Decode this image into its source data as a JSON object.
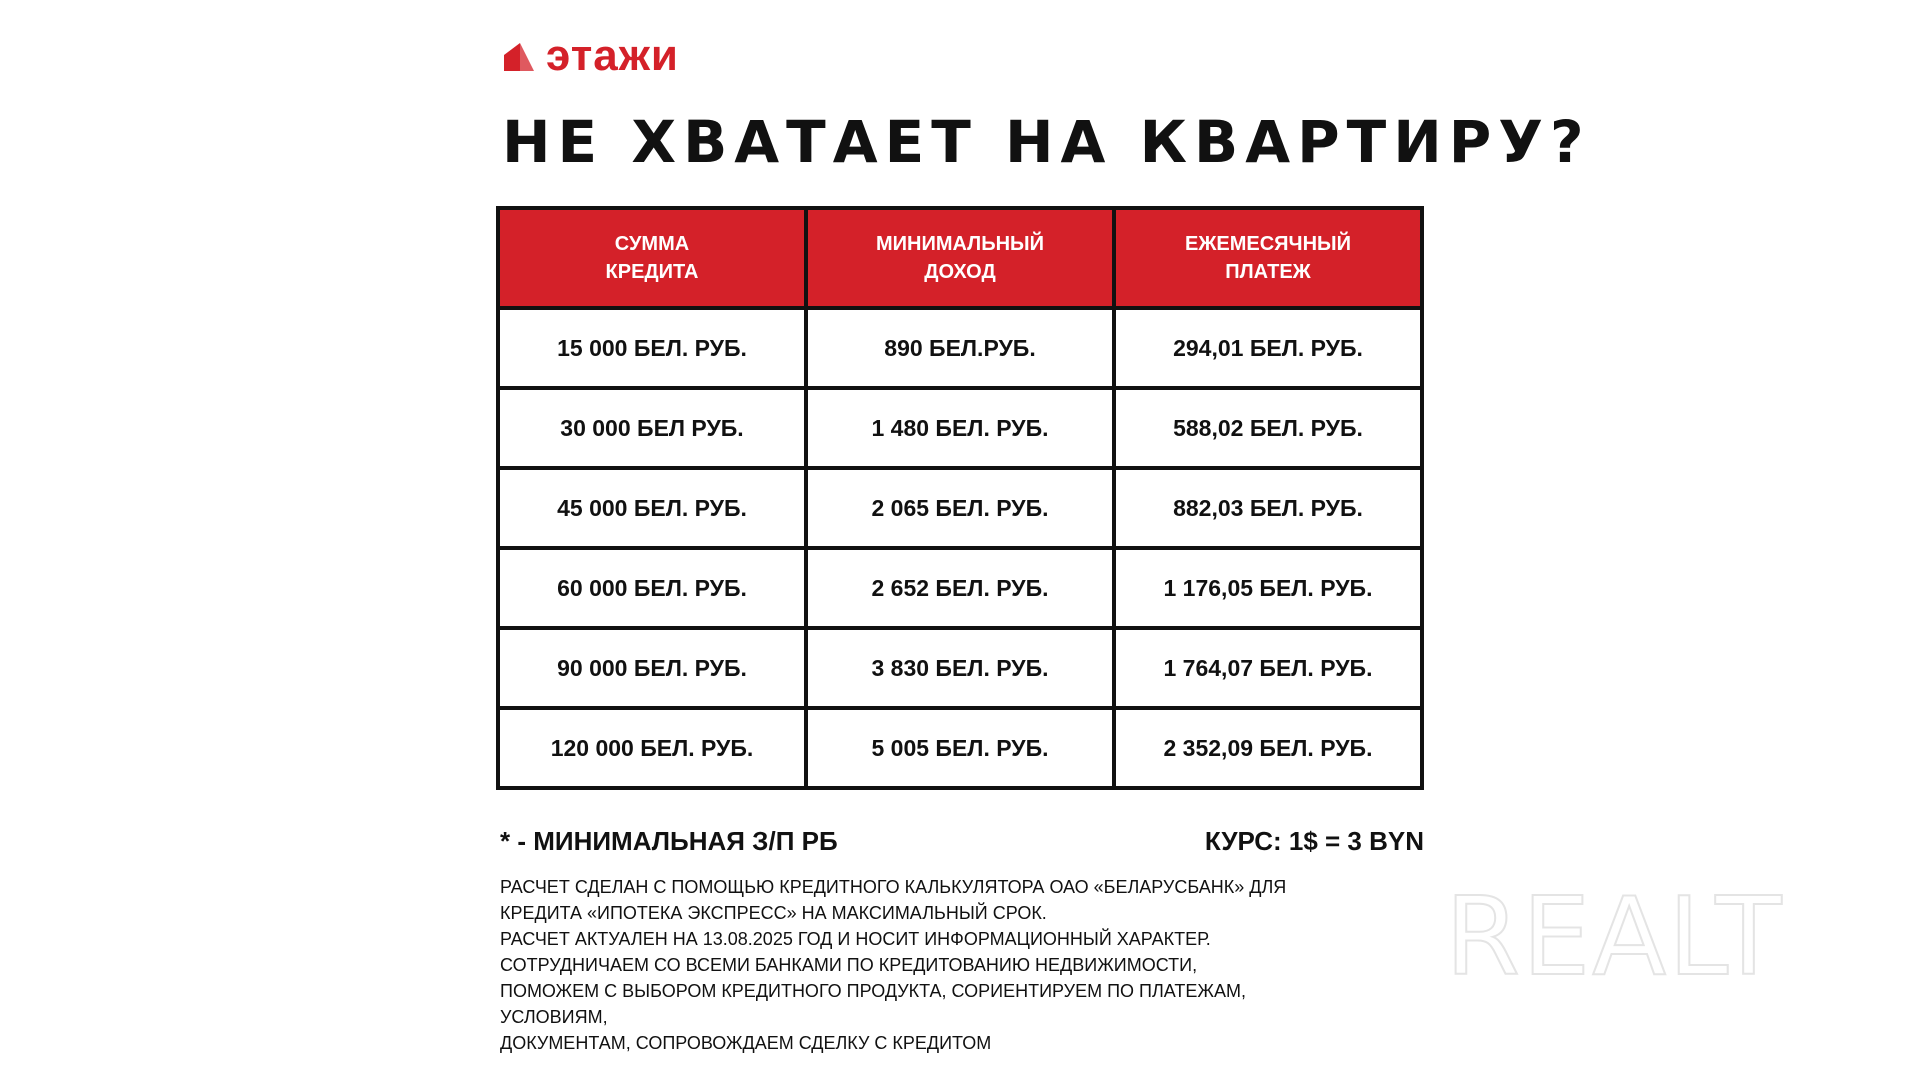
{
  "logo": {
    "text": "этажи",
    "color": "#d42129"
  },
  "title": "НЕ ХВАТАЕТ НА КВАРТИРУ?",
  "table": {
    "headers": [
      [
        "СУММА",
        "КРЕДИТА"
      ],
      [
        "МИНИМАЛЬНЫЙ",
        "ДОХОД"
      ],
      [
        "ЕЖЕМЕСЯЧНЫЙ",
        "ПЛАТЕЖ"
      ]
    ],
    "rows": [
      [
        "15 000 БЕЛ. РУБ.",
        "890 БЕЛ.РУБ.",
        "294,01 БЕЛ. РУБ."
      ],
      [
        "30 000 БЕЛ РУБ.",
        "1 480 БЕЛ. РУБ.",
        "588,02 БЕЛ. РУБ."
      ],
      [
        "45 000 БЕЛ. РУБ.",
        "2 065 БЕЛ. РУБ.",
        "882,03 БЕЛ. РУБ."
      ],
      [
        "60 000 БЕЛ. РУБ.",
        "2 652 БЕЛ. РУБ.",
        "1 176,05 БЕЛ. РУБ."
      ],
      [
        "90 000 БЕЛ. РУБ.",
        "3 830 БЕЛ. РУБ.",
        "1 764,07 БЕЛ. РУБ."
      ],
      [
        "120 000 БЕЛ. РУБ.",
        "5 005 БЕЛ. РУБ.",
        "2 352,09 БЕЛ. РУБ."
      ]
    ],
    "header_color": "#d42129"
  },
  "footnote": "* - МИНИМАЛЬНАЯ З/П РБ",
  "rate": "КУРС: 1$ = 3 BYN",
  "disclaimer": [
    "РАСЧЕТ СДЕЛАН С ПОМОЩЬЮ КРЕДИТНОГО КАЛЬКУЛЯТОРА ОАО «БЕЛАРУСБАНК» ДЛЯ",
    "КРЕДИТА «ИПОТЕКА ЭКСПРЕСС» НА МАКСИМАЛЬНЫЙ СРОК.",
    "РАСЧЕТ АКТУАЛЕН НА 13.08.2025 ГОД И НОСИТ ИНФОРМАЦИОННЫЙ ХАРАКТЕР.",
    "СОТРУДНИЧАЕМ СО ВСЕМИ БАНКАМИ ПО КРЕДИТОВАНИЮ НЕДВИЖИМОСТИ,",
    "ПОМОЖЕМ С ВЫБОРОМ КРЕДИТНОГО ПРОДУКТА, СОРИЕНТИРУЕМ ПО ПЛАТЕЖАМ,",
    "УСЛОВИЯМ,",
    "ДОКУМЕНТАМ, СОПРОВОЖДАЕМ СДЕЛКУ С КРЕДИТОМ"
  ],
  "watermark": "REALT"
}
